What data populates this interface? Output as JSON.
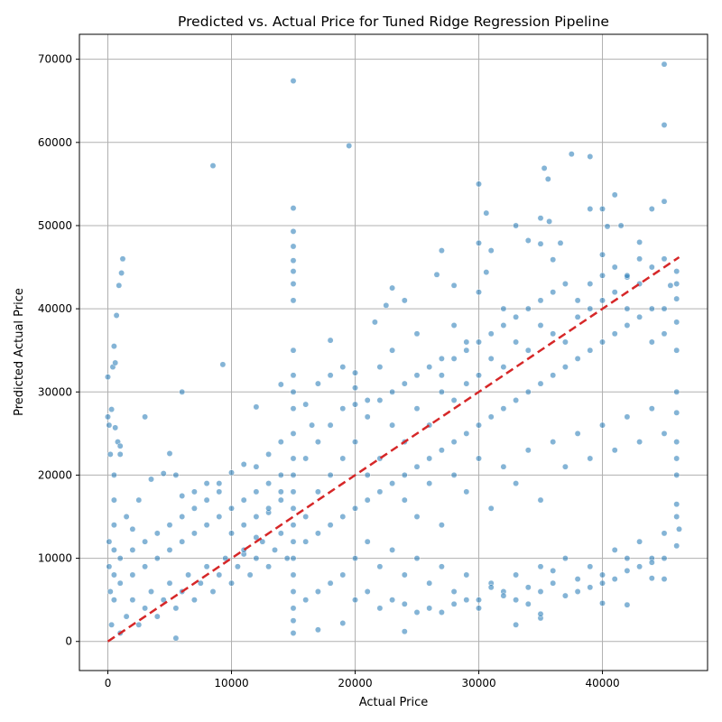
{
  "chart_data": {
    "type": "scatter",
    "title": "Predicted vs. Actual Price for Tuned Ridge Regression Pipeline",
    "xlabel": "Actual Price",
    "ylabel": "Predicted Actual Price",
    "xlim": [
      -2300,
      48500
    ],
    "ylim": [
      -3500,
      73000
    ],
    "xticks": [
      0,
      10000,
      20000,
      30000,
      40000
    ],
    "yticks": [
      0,
      10000,
      20000,
      30000,
      40000,
      50000,
      60000,
      70000
    ],
    "grid": true,
    "colors": {
      "points": "#1f77b4",
      "reference_line": "#d62728"
    },
    "reference_line": {
      "style": "dashed",
      "x": [
        0,
        46200
      ],
      "y": [
        0,
        46200
      ]
    },
    "points": [
      [
        0,
        27000
      ],
      [
        0,
        31800
      ],
      [
        100,
        26000
      ],
      [
        200,
        22500
      ],
      [
        300,
        27900
      ],
      [
        400,
        33000
      ],
      [
        500,
        35500
      ],
      [
        600,
        25700
      ],
      [
        700,
        39200
      ],
      [
        600,
        33500
      ],
      [
        800,
        24000
      ],
      [
        900,
        42800
      ],
      [
        1000,
        23500
      ],
      [
        1100,
        44300
      ],
      [
        1200,
        46000
      ],
      [
        1000,
        22500
      ],
      [
        3000,
        27000
      ],
      [
        6000,
        30000
      ],
      [
        8500,
        57200
      ],
      [
        9300,
        33300
      ],
      [
        15000,
        67400
      ],
      [
        15000,
        52100
      ],
      [
        15000,
        49300
      ],
      [
        15000,
        47500
      ],
      [
        15000,
        45800
      ],
      [
        15000,
        44500
      ],
      [
        15000,
        43000
      ],
      [
        15000,
        41000
      ],
      [
        19500,
        59600
      ],
      [
        12000,
        28200
      ],
      [
        14000,
        30900
      ],
      [
        18000,
        36200
      ],
      [
        20000,
        32300
      ],
      [
        21600,
        38400
      ],
      [
        24000,
        41000
      ],
      [
        26600,
        44100
      ],
      [
        27000,
        47000
      ],
      [
        28000,
        42800
      ],
      [
        30000,
        55000
      ],
      [
        30000,
        47900
      ],
      [
        30600,
        51500
      ],
      [
        30600,
        44400
      ],
      [
        31000,
        47000
      ],
      [
        33000,
        50000
      ],
      [
        34000,
        48200
      ],
      [
        35000,
        50900
      ],
      [
        35000,
        47800
      ],
      [
        35300,
        56900
      ],
      [
        35600,
        55600
      ],
      [
        35700,
        50500
      ],
      [
        36000,
        45900
      ],
      [
        36600,
        47900
      ],
      [
        37500,
        58600
      ],
      [
        39000,
        58300
      ],
      [
        39000,
        52000
      ],
      [
        40000,
        52000
      ],
      [
        40000,
        46500
      ],
      [
        40400,
        49900
      ],
      [
        41000,
        53700
      ],
      [
        41500,
        50000
      ],
      [
        43000,
        48000
      ],
      [
        44000,
        52000
      ],
      [
        45000,
        69400
      ],
      [
        45000,
        62100
      ],
      [
        45000,
        52900
      ],
      [
        46000,
        44500
      ],
      [
        46000,
        43000
      ],
      [
        42000,
        43800
      ],
      [
        33000,
        2000
      ],
      [
        35000,
        2800
      ],
      [
        35000,
        3300
      ],
      [
        24000,
        1200
      ],
      [
        17000,
        1400
      ],
      [
        19000,
        2200
      ],
      [
        5500,
        400
      ],
      [
        42000,
        4400
      ],
      [
        40000,
        4600
      ],
      [
        44000,
        7600
      ],
      [
        45000,
        7500
      ],
      [
        46000,
        11500
      ],
      [
        46200,
        13500
      ],
      [
        46000,
        16500
      ],
      [
        46000,
        20000
      ],
      [
        46000,
        24000
      ],
      [
        46000,
        27500
      ],
      [
        46000,
        30000
      ],
      [
        46000,
        35000
      ],
      [
        46000,
        38400
      ],
      [
        46000,
        41200
      ],
      [
        45500,
        42800
      ],
      [
        30000,
        42000
      ],
      [
        32000,
        40000
      ],
      [
        28000,
        38000
      ],
      [
        29000,
        36000
      ],
      [
        27000,
        34000
      ],
      [
        25000,
        37000
      ],
      [
        23000,
        35000
      ],
      [
        22000,
        33000
      ],
      [
        23000,
        42500
      ],
      [
        22500,
        40400
      ],
      [
        20000,
        30500
      ],
      [
        21000,
        29000
      ],
      [
        19000,
        33000
      ],
      [
        18000,
        32000
      ],
      [
        17000,
        31000
      ],
      [
        16000,
        28500
      ],
      [
        16500,
        26000
      ],
      [
        14000,
        24000
      ],
      [
        13000,
        22500
      ],
      [
        12000,
        21000
      ],
      [
        11000,
        21300
      ],
      [
        10000,
        20300
      ],
      [
        9000,
        19000
      ],
      [
        8000,
        19000
      ],
      [
        7000,
        18000
      ],
      [
        6000,
        17500
      ],
      [
        5000,
        22600
      ],
      [
        5500,
        20000
      ],
      [
        4500,
        20200
      ],
      [
        3500,
        19500
      ],
      [
        2500,
        17000
      ],
      [
        2000,
        13500
      ],
      [
        1500,
        15000
      ],
      [
        12000,
        12500
      ],
      [
        11000,
        10500
      ],
      [
        13000,
        15500
      ],
      [
        14000,
        18000
      ],
      [
        15000,
        35000
      ],
      [
        15000,
        32000
      ],
      [
        15000,
        30000
      ],
      [
        15000,
        28000
      ],
      [
        15000,
        25000
      ],
      [
        15000,
        22000
      ],
      [
        15000,
        20000
      ],
      [
        15000,
        18000
      ],
      [
        15000,
        16000
      ],
      [
        15000,
        14000
      ],
      [
        15000,
        12000
      ],
      [
        15000,
        10000
      ],
      [
        15000,
        8000
      ],
      [
        15000,
        6000
      ],
      [
        15000,
        4000
      ],
      [
        15000,
        2500
      ],
      [
        15000,
        1000
      ],
      [
        16000,
        15000
      ],
      [
        17000,
        18000
      ],
      [
        18000,
        20000
      ],
      [
        19000,
        22000
      ],
      [
        20000,
        24000
      ],
      [
        21000,
        20000
      ],
      [
        22000,
        22000
      ],
      [
        23000,
        26000
      ],
      [
        24000,
        24000
      ],
      [
        25000,
        28000
      ],
      [
        26000,
        26000
      ],
      [
        27000,
        30000
      ],
      [
        28000,
        29000
      ],
      [
        29000,
        31000
      ],
      [
        30000,
        32000
      ],
      [
        31000,
        34000
      ],
      [
        32000,
        33000
      ],
      [
        33000,
        36000
      ],
      [
        34000,
        35000
      ],
      [
        35000,
        38000
      ],
      [
        36000,
        37000
      ],
      [
        37000,
        36000
      ],
      [
        38000,
        39000
      ],
      [
        39000,
        40000
      ],
      [
        40000,
        41000
      ],
      [
        41000,
        42000
      ],
      [
        42000,
        40000
      ],
      [
        43000,
        43000
      ],
      [
        44000,
        40000
      ],
      [
        45000,
        40000
      ],
      [
        24000,
        17000
      ],
      [
        25000,
        15000
      ],
      [
        26000,
        19000
      ],
      [
        27000,
        14000
      ],
      [
        28000,
        20000
      ],
      [
        29000,
        18000
      ],
      [
        30000,
        22000
      ],
      [
        31000,
        16000
      ],
      [
        32000,
        21000
      ],
      [
        33000,
        19000
      ],
      [
        34000,
        23000
      ],
      [
        35000,
        17000
      ],
      [
        36000,
        24000
      ],
      [
        37000,
        21000
      ],
      [
        38000,
        25000
      ],
      [
        39000,
        22000
      ],
      [
        40000,
        26000
      ],
      [
        41000,
        23000
      ],
      [
        42000,
        27000
      ],
      [
        43000,
        24000
      ],
      [
        44000,
        28000
      ],
      [
        45000,
        25000
      ],
      [
        20000,
        10000
      ],
      [
        21000,
        12000
      ],
      [
        22000,
        9000
      ],
      [
        23000,
        11000
      ],
      [
        24000,
        8000
      ],
      [
        25000,
        10000
      ],
      [
        26000,
        7000
      ],
      [
        27000,
        9000
      ],
      [
        28000,
        6000
      ],
      [
        29000,
        8000
      ],
      [
        30000,
        5000
      ],
      [
        31000,
        7000
      ],
      [
        32000,
        6000
      ],
      [
        33000,
        8000
      ],
      [
        34000,
        6500
      ],
      [
        35000,
        9000
      ],
      [
        36000,
        7000
      ],
      [
        37000,
        10000
      ],
      [
        38000,
        6000
      ],
      [
        39000,
        9000
      ],
      [
        40000,
        8000
      ],
      [
        41000,
        11000
      ],
      [
        42000,
        10000
      ],
      [
        43000,
        12000
      ],
      [
        44000,
        10000
      ],
      [
        45000,
        13000
      ],
      [
        1000,
        1000
      ],
      [
        1500,
        3000
      ],
      [
        2000,
        5000
      ],
      [
        2500,
        2000
      ],
      [
        3000,
        4000
      ],
      [
        3500,
        6000
      ],
      [
        4000,
        3000
      ],
      [
        4500,
        5000
      ],
      [
        5000,
        7000
      ],
      [
        5500,
        4000
      ],
      [
        6000,
        6000
      ],
      [
        6500,
        8000
      ],
      [
        7000,
        5000
      ],
      [
        7500,
        7000
      ],
      [
        8000,
        9000
      ],
      [
        8500,
        6000
      ],
      [
        9000,
        8000
      ],
      [
        9500,
        10000
      ],
      [
        10000,
        7000
      ],
      [
        10500,
        9000
      ],
      [
        11000,
        11000
      ],
      [
        11500,
        8000
      ],
      [
        12000,
        10000
      ],
      [
        12500,
        12000
      ],
      [
        13000,
        9000
      ],
      [
        13500,
        11000
      ],
      [
        14000,
        13000
      ],
      [
        14500,
        10000
      ],
      [
        500,
        5000
      ],
      [
        500,
        8000
      ],
      [
        500,
        11000
      ],
      [
        500,
        14000
      ],
      [
        500,
        17000
      ],
      [
        500,
        20000
      ],
      [
        300,
        2000
      ],
      [
        200,
        6000
      ],
      [
        100,
        9000
      ],
      [
        100,
        12000
      ],
      [
        1000,
        7000
      ],
      [
        1000,
        10000
      ],
      [
        2000,
        8000
      ],
      [
        2000,
        11000
      ],
      [
        3000,
        9000
      ],
      [
        3000,
        12000
      ],
      [
        4000,
        10000
      ],
      [
        4000,
        13000
      ],
      [
        5000,
        11000
      ],
      [
        5000,
        14000
      ],
      [
        6000,
        12000
      ],
      [
        6000,
        15000
      ],
      [
        7000,
        13000
      ],
      [
        7000,
        16000
      ],
      [
        8000,
        14000
      ],
      [
        8000,
        17000
      ],
      [
        9000,
        15000
      ],
      [
        9000,
        18000
      ],
      [
        10000,
        16000
      ],
      [
        10000,
        13000
      ],
      [
        11000,
        17000
      ],
      [
        11000,
        14000
      ],
      [
        12000,
        18000
      ],
      [
        12000,
        15000
      ],
      [
        13000,
        19000
      ],
      [
        13000,
        16000
      ],
      [
        14000,
        20000
      ],
      [
        14000,
        17000
      ],
      [
        16000,
        22000
      ],
      [
        17000,
        24000
      ],
      [
        18000,
        26000
      ],
      [
        19000,
        28000
      ],
      [
        20000,
        28500
      ],
      [
        21000,
        27000
      ],
      [
        22000,
        29000
      ],
      [
        23000,
        30000
      ],
      [
        24000,
        31000
      ],
      [
        25000,
        32000
      ],
      [
        26000,
        33000
      ],
      [
        27000,
        32000
      ],
      [
        28000,
        34000
      ],
      [
        29000,
        35000
      ],
      [
        30000,
        36000
      ],
      [
        31000,
        37000
      ],
      [
        32000,
        38000
      ],
      [
        33000,
        39000
      ],
      [
        34000,
        40000
      ],
      [
        35000,
        41000
      ],
      [
        36000,
        42000
      ],
      [
        37000,
        43000
      ],
      [
        38000,
        41000
      ],
      [
        39000,
        43000
      ],
      [
        40000,
        44000
      ],
      [
        41000,
        45000
      ],
      [
        42000,
        44000
      ],
      [
        43000,
        46000
      ],
      [
        44000,
        45000
      ],
      [
        45000,
        46000
      ],
      [
        16000,
        12000
      ],
      [
        17000,
        13000
      ],
      [
        18000,
        14000
      ],
      [
        19000,
        15000
      ],
      [
        20000,
        16000
      ],
      [
        21000,
        17000
      ],
      [
        22000,
        18000
      ],
      [
        23000,
        19000
      ],
      [
        24000,
        20000
      ],
      [
        25000,
        21000
      ],
      [
        26000,
        22000
      ],
      [
        27000,
        23000
      ],
      [
        28000,
        24000
      ],
      [
        29000,
        25000
      ],
      [
        30000,
        26000
      ],
      [
        31000,
        27000
      ],
      [
        32000,
        28000
      ],
      [
        33000,
        29000
      ],
      [
        34000,
        30000
      ],
      [
        35000,
        31000
      ],
      [
        36000,
        32000
      ],
      [
        37000,
        33000
      ],
      [
        38000,
        34000
      ],
      [
        39000,
        35000
      ],
      [
        40000,
        36000
      ],
      [
        41000,
        37000
      ],
      [
        42000,
        38000
      ],
      [
        43000,
        39000
      ],
      [
        44000,
        36000
      ],
      [
        45000,
        37000
      ],
      [
        16000,
        5000
      ],
      [
        17000,
        6000
      ],
      [
        18000,
        7000
      ],
      [
        19000,
        8000
      ],
      [
        20000,
        5000
      ],
      [
        21000,
        6000
      ],
      [
        22000,
        4000
      ],
      [
        23000,
        5000
      ],
      [
        24000,
        4500
      ],
      [
        25000,
        3500
      ],
      [
        26000,
        4000
      ],
      [
        27000,
        3500
      ],
      [
        28000,
        4500
      ],
      [
        29000,
        5000
      ],
      [
        30000,
        4000
      ],
      [
        31000,
        6500
      ],
      [
        32000,
        5500
      ],
      [
        33000,
        5000
      ],
      [
        34000,
        4500
      ],
      [
        35000,
        6000
      ],
      [
        36000,
        8500
      ],
      [
        37000,
        5500
      ],
      [
        38000,
        7500
      ],
      [
        39000,
        6500
      ],
      [
        40000,
        7000
      ],
      [
        41000,
        7500
      ],
      [
        42000,
        8500
      ],
      [
        43000,
        9000
      ],
      [
        44000,
        9500
      ],
      [
        45000,
        10000
      ],
      [
        46000,
        15000
      ],
      [
        46000,
        22000
      ]
    ]
  }
}
